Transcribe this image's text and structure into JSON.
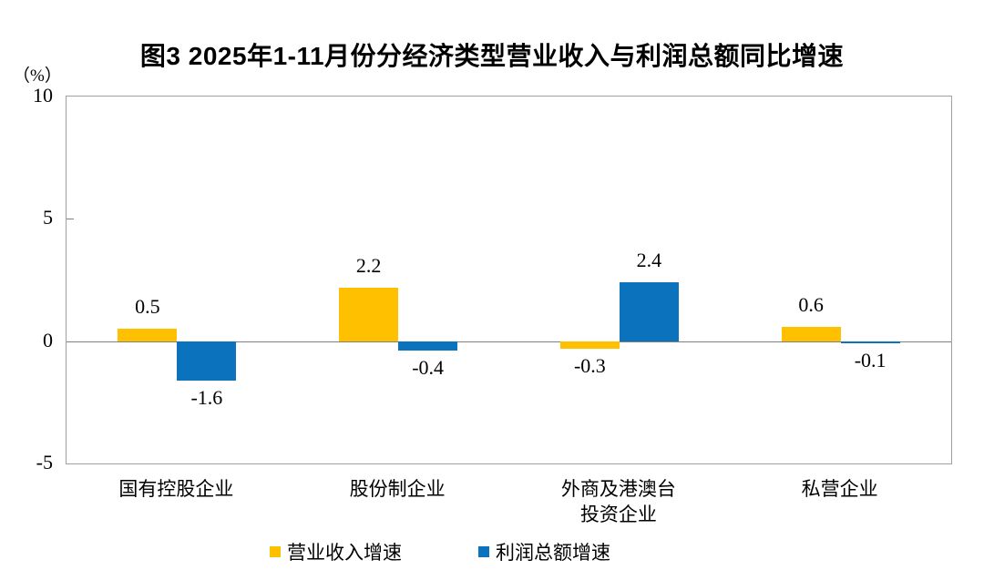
{
  "chart_data": {
    "type": "bar",
    "title": "图3 2025年1-11月份分经济类型营业收入与利润总额同比增速",
    "unit_label": "（%）",
    "categories": [
      "国有控股企业",
      "股份制企业",
      "外商及港澳台\n投资企业",
      "私营企业"
    ],
    "series": [
      {
        "name": "营业收入增速",
        "color": "#FFC000",
        "values": [
          0.5,
          2.2,
          -0.3,
          0.6
        ]
      },
      {
        "name": "利润总额增速",
        "color": "#0B72BE",
        "values": [
          -1.6,
          -0.4,
          2.4,
          -0.1
        ]
      }
    ],
    "ylim": [
      -5,
      10
    ],
    "yticks": [
      10,
      5,
      0,
      -5
    ],
    "grid": "zero-line-only",
    "legend_position": "bottom",
    "data_labels": true
  }
}
